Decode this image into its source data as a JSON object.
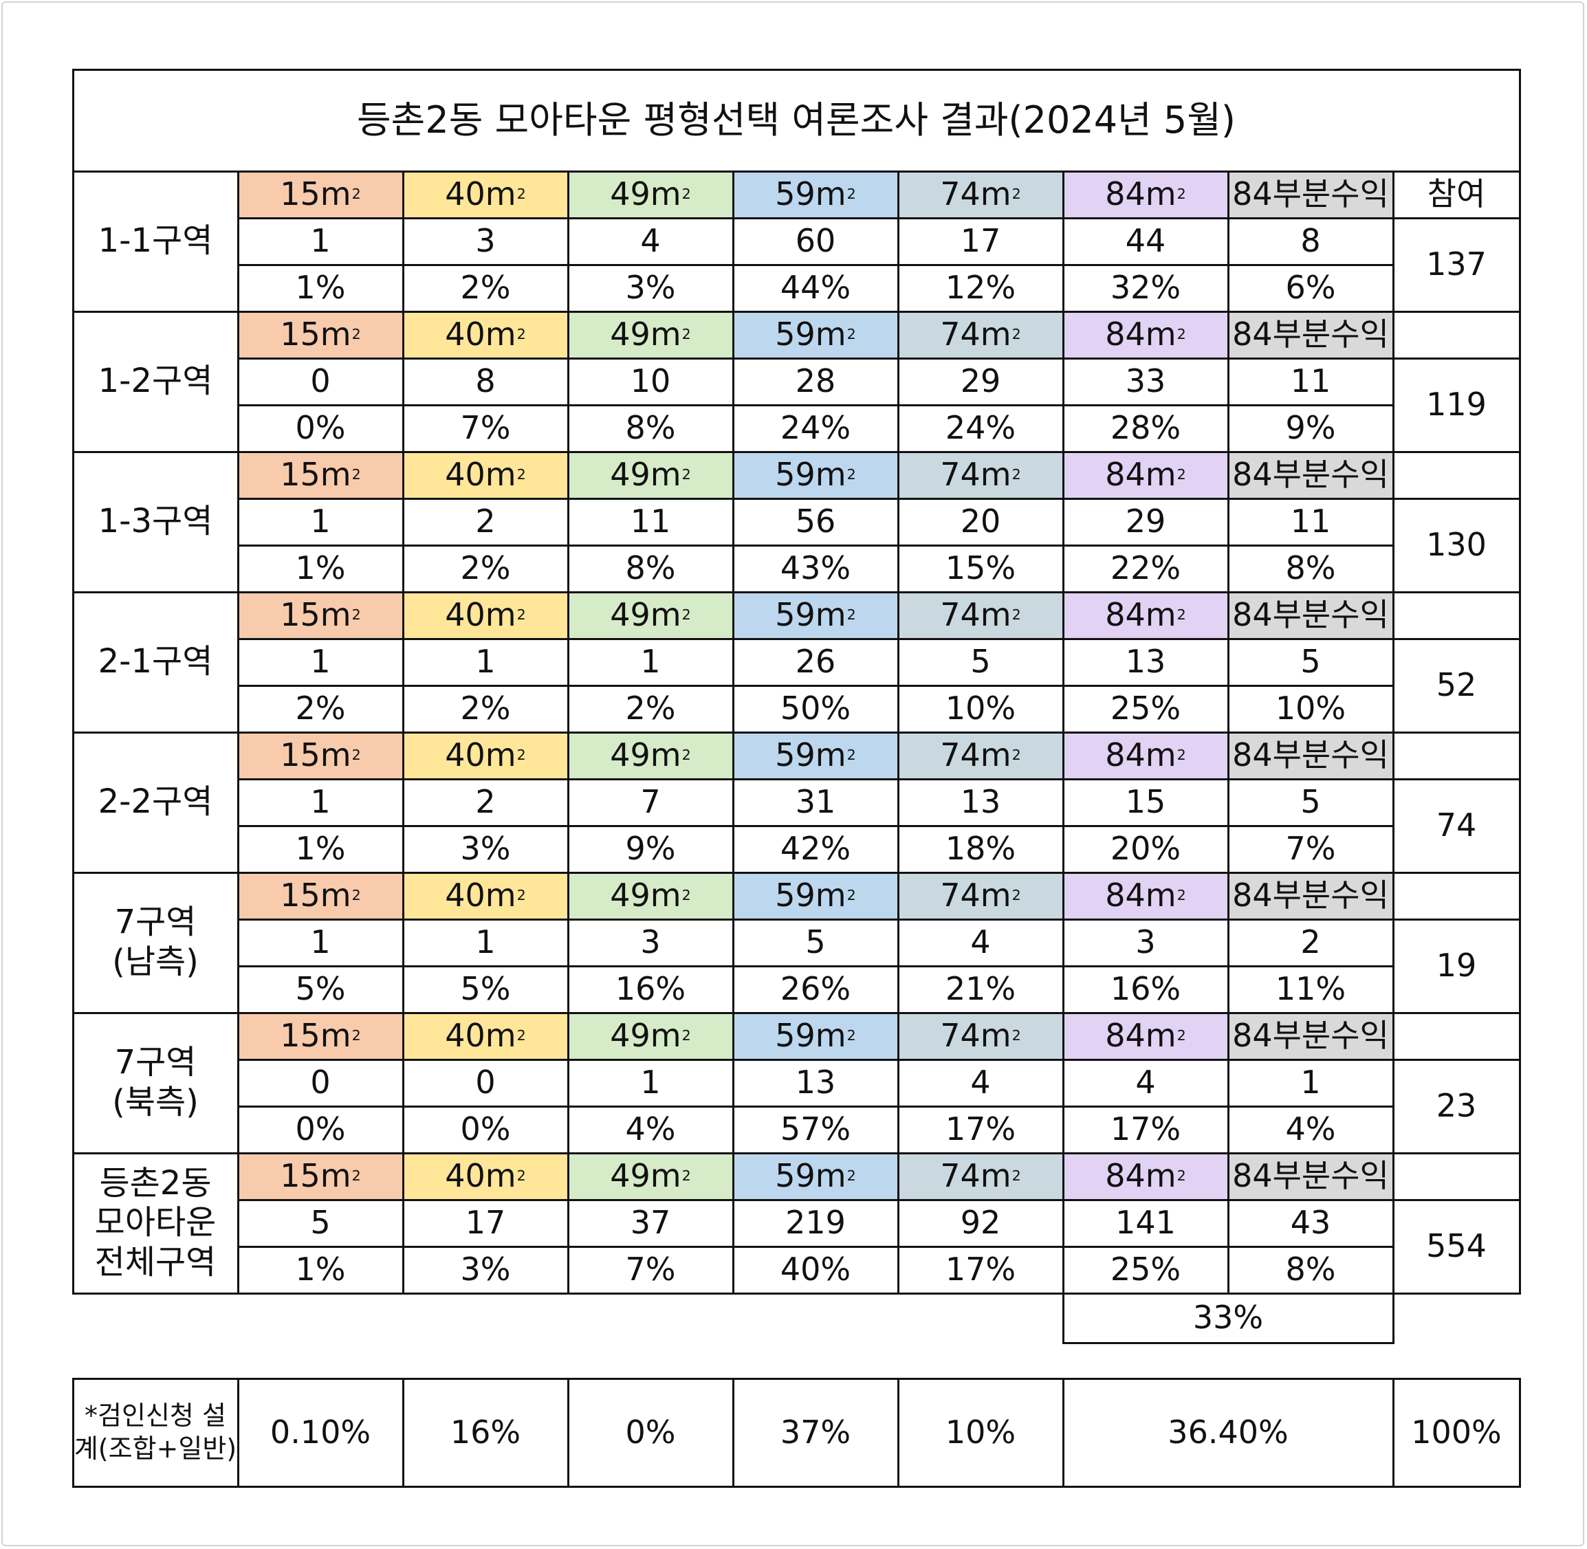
{
  "title": "등촌2동 모아타운 평형선택 여론조사 결과(2024년 5월)",
  "size_headers": [
    "15㎡",
    "40㎡",
    "49㎡",
    "59㎡",
    "74㎡",
    "84㎡",
    "84부분수익"
  ],
  "participation_label": "참여",
  "colors": {
    "15㎡": "#f8cbad",
    "40㎡": "#ffe699",
    "49㎡": "#d6ebc7",
    "59㎡": "#bdd7ee",
    "74㎡": "#c9d9df",
    "84㎡": "#e2d2f4",
    "84부분수익": "#d9d9d9",
    "lines": "#111111"
  },
  "zones": [
    {
      "name": "1-1구역",
      "counts": [
        "1",
        "3",
        "4",
        "60",
        "17",
        "44",
        "8"
      ],
      "percents": [
        "1%",
        "2%",
        "3%",
        "44%",
        "12%",
        "32%",
        "6%"
      ],
      "participants": "137"
    },
    {
      "name": "1-2구역",
      "counts": [
        "0",
        "8",
        "10",
        "28",
        "29",
        "33",
        "11"
      ],
      "percents": [
        "0%",
        "7%",
        "8%",
        "24%",
        "24%",
        "28%",
        "9%"
      ],
      "participants": "119"
    },
    {
      "name": "1-3구역",
      "counts": [
        "1",
        "2",
        "11",
        "56",
        "20",
        "29",
        "11"
      ],
      "percents": [
        "1%",
        "2%",
        "8%",
        "43%",
        "15%",
        "22%",
        "8%"
      ],
      "participants": "130"
    },
    {
      "name": "2-1구역",
      "counts": [
        "1",
        "1",
        "1",
        "26",
        "5",
        "13",
        "5"
      ],
      "percents": [
        "2%",
        "2%",
        "2%",
        "50%",
        "10%",
        "25%",
        "10%"
      ],
      "participants": "52"
    },
    {
      "name": "2-2구역",
      "counts": [
        "1",
        "2",
        "7",
        "31",
        "13",
        "15",
        "5"
      ],
      "percents": [
        "1%",
        "3%",
        "9%",
        "42%",
        "18%",
        "20%",
        "7%"
      ],
      "participants": "74"
    },
    {
      "name": "7구역\n(남측)",
      "counts": [
        "1",
        "1",
        "3",
        "5",
        "4",
        "3",
        "2"
      ],
      "percents": [
        "5%",
        "5%",
        "16%",
        "26%",
        "21%",
        "16%",
        "11%"
      ],
      "participants": "19"
    },
    {
      "name": "7구역\n(북측)",
      "counts": [
        "0",
        "0",
        "1",
        "13",
        "4",
        "4",
        "1"
      ],
      "percents": [
        "0%",
        "0%",
        "4%",
        "57%",
        "17%",
        "17%",
        "4%"
      ],
      "participants": "23"
    },
    {
      "name": "등촌2동\n모아타운\n전체구역",
      "counts": [
        "5",
        "17",
        "37",
        "219",
        "92",
        "141",
        "43"
      ],
      "percents": [
        "1%",
        "3%",
        "7%",
        "40%",
        "17%",
        "25%",
        "8%"
      ],
      "participants": "554"
    }
  ],
  "combined_84": "33%",
  "plan_row": {
    "label": "*검인신청 설계(조합+일반)",
    "values": [
      "0.10%",
      "16%",
      "0%",
      "37%",
      "10%",
      "36.40%",
      "100%"
    ]
  }
}
